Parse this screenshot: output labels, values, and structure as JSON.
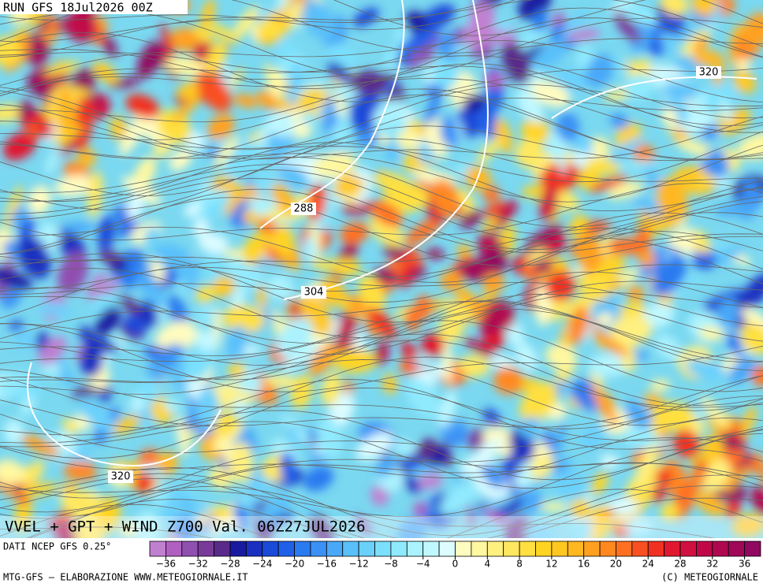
{
  "header": {
    "run": "RUN GFS 18Jul2026 00Z"
  },
  "map": {
    "title": "VVEL + GPT + WIND Z700 Val. 06Z27JUL2026",
    "contour_labels": [
      "320",
      "288",
      "304",
      "320"
    ]
  },
  "colorbar": {
    "source": "DATI NCEP GFS 0.25°",
    "xlim": [
      -38,
      38
    ],
    "colors": [
      "#c080d0",
      "#b060c0",
      "#9050b0",
      "#7a3a9a",
      "#5a2a8a",
      "#1a1aa0",
      "#1a30c0",
      "#1a4ad8",
      "#2060e8",
      "#2a7af0",
      "#3a90f5",
      "#4aa8f8",
      "#5ac0fa",
      "#6ad0fc",
      "#7ae0fd",
      "#90eafe",
      "#aaf2fe",
      "#c0f8ff",
      "#dcfcff",
      "#fffcc0",
      "#fff8a0",
      "#fff080",
      "#ffe860",
      "#ffe040",
      "#ffd420",
      "#ffc820",
      "#ffb820",
      "#ffa020",
      "#ff8820",
      "#ff7020",
      "#f85020",
      "#f03020",
      "#e01830",
      "#d01040",
      "#c00848",
      "#b00850",
      "#a00858",
      "#900860"
    ],
    "xticks": [
      {
        "value": -36,
        "label": "−36"
      },
      {
        "value": -32,
        "label": "−32"
      },
      {
        "value": -28,
        "label": "−28"
      },
      {
        "value": -24,
        "label": "−24"
      },
      {
        "value": -20,
        "label": "−20"
      },
      {
        "value": -16,
        "label": "−16"
      },
      {
        "value": -12,
        "label": "−12"
      },
      {
        "value": -8,
        "label": "−8"
      },
      {
        "value": -4,
        "label": "−4"
      },
      0,
      4,
      8,
      12,
      16,
      20,
      24,
      28,
      32,
      36
    ]
  },
  "footer": {
    "left": "MTG-GFS — ELABORAZIONE WWW.METEOGIORNALE.IT",
    "right": "(C) METEOGIORNALE"
  }
}
